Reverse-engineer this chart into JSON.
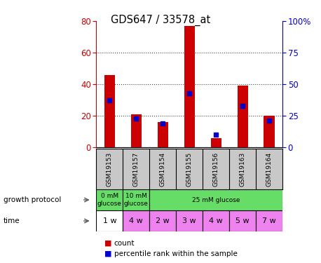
{
  "title": "GDS647 / 33578_at",
  "samples": [
    "GSM19153",
    "GSM19157",
    "GSM19154",
    "GSM19155",
    "GSM19156",
    "GSM19163",
    "GSM19164"
  ],
  "counts": [
    46,
    21,
    16,
    77,
    6,
    39,
    20
  ],
  "percentiles": [
    37,
    23,
    19,
    43,
    10,
    33,
    21
  ],
  "ylim_left": [
    0,
    80
  ],
  "ylim_right": [
    0,
    100
  ],
  "yticks_left": [
    0,
    20,
    40,
    60,
    80
  ],
  "yticks_right": [
    0,
    25,
    50,
    75,
    100
  ],
  "ytick_labels_right": [
    "0",
    "25",
    "50",
    "75",
    "100%"
  ],
  "bar_color": "#cc0000",
  "square_color": "#0000cc",
  "time": [
    "1 w",
    "4 w",
    "2 w",
    "3 w",
    "4 w",
    "5 w",
    "7 w"
  ],
  "time_bg": [
    "#ffffff",
    "#ee82ee",
    "#ee82ee",
    "#ee82ee",
    "#ee82ee",
    "#ee82ee",
    "#ee82ee"
  ],
  "growth_color": "#66dd66",
  "sample_bg_color": "#c8c8c8",
  "left_axis_color": "#cc0000",
  "right_axis_color": "#0000cc",
  "grid_color": "#444444",
  "growth_groups": [
    {
      "label": "0 mM\nglucose",
      "start": 0,
      "end": 1,
      "color": "#66dd66"
    },
    {
      "label": "10 mM\nglucose",
      "start": 1,
      "end": 2,
      "color": "#66dd66"
    },
    {
      "label": "25 mM glucose",
      "start": 2,
      "end": 7,
      "color": "#66dd66"
    }
  ]
}
